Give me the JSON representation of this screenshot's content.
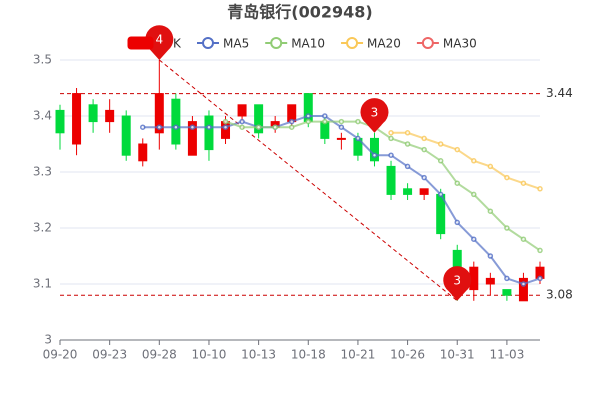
{
  "chart_data": {
    "type": "candlestick",
    "title": "青岛银行(002948)",
    "categories": [
      "09-20",
      null,
      null,
      "09-23",
      null,
      null,
      "09-28",
      null,
      null,
      "10-10",
      null,
      null,
      "10-13",
      null,
      null,
      "10-18",
      null,
      null,
      "10-21",
      null,
      null,
      "10-26",
      null,
      null,
      "10-31",
      null,
      null,
      "11-03",
      null,
      null
    ],
    "candles": {
      "name": "K",
      "up_color": "#ec0000",
      "down_color": "#00da3c",
      "open": [
        3.41,
        3.35,
        3.42,
        3.39,
        3.4,
        3.32,
        3.37,
        3.43,
        3.33,
        3.4,
        3.36,
        3.4,
        3.42,
        3.38,
        3.39,
        3.44,
        3.39,
        3.36,
        3.36,
        3.36,
        3.31,
        3.27,
        3.26,
        3.26,
        3.16,
        3.09,
        3.1,
        3.09,
        3.07,
        3.11
      ],
      "close": [
        3.37,
        3.44,
        3.39,
        3.41,
        3.33,
        3.35,
        3.44,
        3.35,
        3.39,
        3.34,
        3.39,
        3.42,
        3.37,
        3.39,
        3.42,
        3.39,
        3.36,
        3.36,
        3.33,
        3.32,
        3.26,
        3.26,
        3.27,
        3.19,
        3.13,
        3.13,
        3.11,
        3.08,
        3.11,
        3.13
      ],
      "low": [
        3.34,
        3.33,
        3.37,
        3.37,
        3.32,
        3.31,
        3.34,
        3.34,
        3.33,
        3.32,
        3.35,
        3.39,
        3.36,
        3.37,
        3.38,
        3.38,
        3.35,
        3.34,
        3.32,
        3.31,
        3.25,
        3.25,
        3.25,
        3.18,
        3.07,
        3.07,
        3.08,
        3.07,
        3.07,
        3.1
      ],
      "high": [
        3.42,
        3.45,
        3.43,
        3.43,
        3.41,
        3.36,
        3.5,
        3.44,
        3.4,
        3.41,
        3.4,
        3.42,
        3.42,
        3.4,
        3.42,
        3.44,
        3.4,
        3.37,
        3.37,
        3.37,
        3.32,
        3.28,
        3.27,
        3.27,
        3.17,
        3.14,
        3.12,
        3.09,
        3.12,
        3.14
      ]
    },
    "series": [
      {
        "name": "MA5",
        "color": "#5470c6",
        "values": [
          null,
          null,
          null,
          null,
          null,
          3.38,
          3.38,
          3.38,
          3.38,
          3.38,
          3.38,
          3.39,
          3.38,
          3.38,
          3.39,
          3.4,
          3.4,
          3.38,
          3.36,
          3.33,
          3.33,
          3.31,
          3.29,
          3.26,
          3.21,
          3.18,
          3.15,
          3.11,
          3.1,
          3.11
        ]
      },
      {
        "name": "MA10",
        "color": "#91cc75",
        "values": [
          null,
          null,
          null,
          null,
          null,
          null,
          null,
          null,
          null,
          null,
          3.39,
          3.38,
          3.38,
          3.38,
          3.38,
          3.39,
          3.39,
          3.39,
          3.39,
          3.38,
          3.36,
          3.35,
          3.34,
          3.32,
          3.28,
          3.26,
          3.23,
          3.2,
          3.18,
          3.16
        ]
      },
      {
        "name": "MA20",
        "color": "#fac858",
        "values": [
          null,
          null,
          null,
          null,
          null,
          null,
          null,
          null,
          null,
          null,
          null,
          null,
          null,
          null,
          null,
          null,
          null,
          null,
          null,
          null,
          3.37,
          3.37,
          3.36,
          3.35,
          3.34,
          3.32,
          3.31,
          3.29,
          3.28,
          3.27
        ]
      },
      {
        "name": "MA30",
        "color": "#ee6666",
        "values": [
          null,
          null,
          null,
          null,
          null,
          null,
          null,
          null,
          null,
          null,
          null,
          null,
          null,
          null,
          null,
          null,
          null,
          null,
          null,
          null,
          null,
          null,
          null,
          null,
          null,
          null,
          null,
          null,
          null,
          null
        ]
      }
    ],
    "mark_points": [
      {
        "label": "4",
        "index": 6,
        "value": 3.5
      },
      {
        "label": "3",
        "index": 19,
        "value": 3.37
      },
      {
        "label": "3",
        "index": 24,
        "value": 3.07
      }
    ],
    "ref_lines": [
      3.44,
      3.08
    ],
    "ylim": [
      3,
      3.5
    ],
    "yticks": [
      3,
      3.1,
      3.2,
      3.3,
      3.4,
      3.5
    ],
    "grid": true
  }
}
